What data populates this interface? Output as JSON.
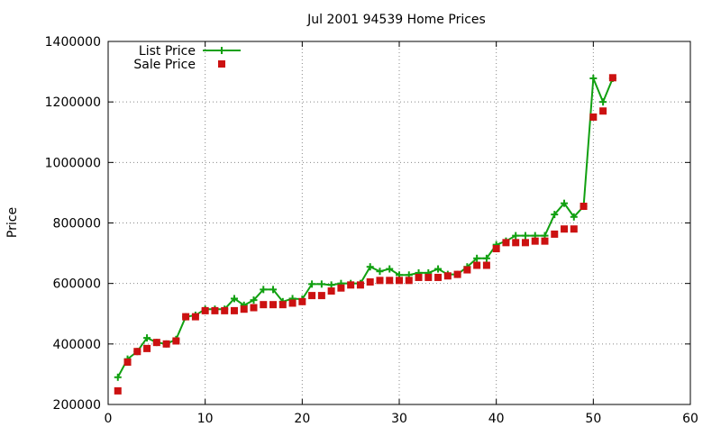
{
  "chart_data": {
    "type": "line",
    "title": "Jul 2001 94539 Home Prices",
    "xlabel": "",
    "ylabel": "Price",
    "xlim": [
      0,
      60
    ],
    "ylim": [
      200000,
      1400000
    ],
    "x_ticks": [
      "0",
      "10",
      "20",
      "30",
      "40",
      "50",
      "60"
    ],
    "y_ticks": [
      "200000",
      "400000",
      "600000",
      "800000",
      "1000000",
      "1200000",
      "1400000"
    ],
    "grid": true,
    "legend_position": "top-left",
    "series": [
      {
        "name": "List Price",
        "style": "linespoints",
        "marker": "plus",
        "color": "#11a011",
        "points": [
          [
            1,
            290000
          ],
          [
            2,
            350000
          ],
          [
            3,
            375000
          ],
          [
            4,
            420000
          ],
          [
            5,
            405000
          ],
          [
            6,
            400000
          ],
          [
            7,
            415000
          ],
          [
            8,
            490000
          ],
          [
            9,
            495000
          ],
          [
            10,
            515000
          ],
          [
            11,
            515000
          ],
          [
            12,
            515000
          ],
          [
            13,
            550000
          ],
          [
            14,
            528000
          ],
          [
            15,
            545000
          ],
          [
            16,
            580000
          ],
          [
            17,
            580000
          ],
          [
            18,
            540000
          ],
          [
            19,
            550000
          ],
          [
            20,
            548000
          ],
          [
            21,
            598000
          ],
          [
            22,
            598000
          ],
          [
            23,
            595000
          ],
          [
            24,
            600000
          ],
          [
            25,
            600000
          ],
          [
            26,
            600000
          ],
          [
            27,
            655000
          ],
          [
            28,
            640000
          ],
          [
            29,
            648000
          ],
          [
            30,
            628000
          ],
          [
            31,
            628000
          ],
          [
            32,
            635000
          ],
          [
            33,
            635000
          ],
          [
            34,
            648000
          ],
          [
            35,
            630000
          ],
          [
            36,
            630000
          ],
          [
            37,
            655000
          ],
          [
            38,
            683000
          ],
          [
            39,
            683000
          ],
          [
            40,
            728000
          ],
          [
            41,
            740000
          ],
          [
            42,
            758000
          ],
          [
            43,
            758000
          ],
          [
            44,
            758000
          ],
          [
            45,
            758000
          ],
          [
            46,
            828000
          ],
          [
            47,
            865000
          ],
          [
            48,
            820000
          ],
          [
            49,
            855000
          ],
          [
            50,
            1278000
          ],
          [
            51,
            1200000
          ],
          [
            52,
            1278000
          ]
        ]
      },
      {
        "name": "Sale Price",
        "style": "points",
        "marker": "square",
        "color": "#cc1111",
        "points": [
          [
            1,
            245000
          ],
          [
            2,
            340000
          ],
          [
            3,
            375000
          ],
          [
            4,
            385000
          ],
          [
            5,
            405000
          ],
          [
            6,
            400000
          ],
          [
            7,
            410000
          ],
          [
            8,
            490000
          ],
          [
            9,
            490000
          ],
          [
            10,
            510000
          ],
          [
            11,
            510000
          ],
          [
            12,
            510000
          ],
          [
            13,
            510000
          ],
          [
            14,
            515000
          ],
          [
            15,
            520000
          ],
          [
            16,
            530000
          ],
          [
            17,
            530000
          ],
          [
            18,
            530000
          ],
          [
            19,
            535000
          ],
          [
            20,
            540000
          ],
          [
            21,
            560000
          ],
          [
            22,
            560000
          ],
          [
            23,
            575000
          ],
          [
            24,
            585000
          ],
          [
            25,
            595000
          ],
          [
            26,
            595000
          ],
          [
            27,
            605000
          ],
          [
            28,
            610000
          ],
          [
            29,
            610000
          ],
          [
            30,
            610000
          ],
          [
            31,
            610000
          ],
          [
            32,
            620000
          ],
          [
            33,
            620000
          ],
          [
            34,
            620000
          ],
          [
            35,
            625000
          ],
          [
            36,
            630000
          ],
          [
            37,
            645000
          ],
          [
            38,
            660000
          ],
          [
            39,
            660000
          ],
          [
            40,
            715000
          ],
          [
            41,
            735000
          ],
          [
            42,
            735000
          ],
          [
            43,
            735000
          ],
          [
            44,
            740000
          ],
          [
            45,
            740000
          ],
          [
            46,
            763000
          ],
          [
            47,
            780000
          ],
          [
            48,
            780000
          ],
          [
            49,
            855000
          ],
          [
            50,
            1150000
          ],
          [
            51,
            1170000
          ],
          [
            52,
            1280000
          ]
        ]
      }
    ]
  }
}
